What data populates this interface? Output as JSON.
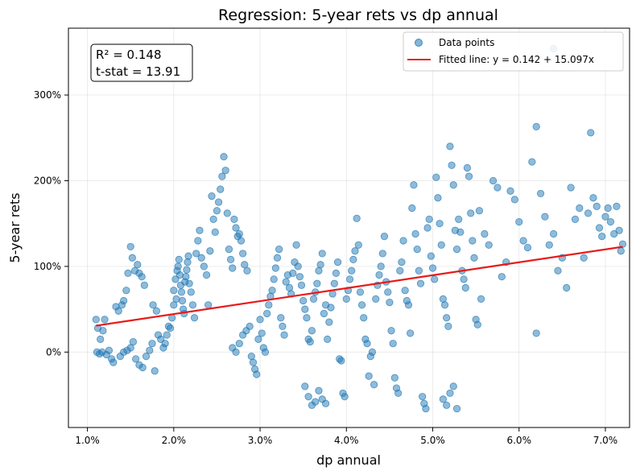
{
  "chart_data": {
    "type": "scatter",
    "title": "Regression: 5-year rets vs dp annual",
    "xlabel": "dp annual",
    "ylabel": "5-year rets",
    "xlim": [
      0.0078,
      0.0728
    ],
    "ylim": [
      -0.88,
      3.78
    ],
    "xticks": [
      {
        "value": 0.01,
        "label": "1.0%"
      },
      {
        "value": 0.02,
        "label": "2.0%"
      },
      {
        "value": 0.03,
        "label": "3.0%"
      },
      {
        "value": 0.04,
        "label": "4.0%"
      },
      {
        "value": 0.05,
        "label": "5.0%"
      },
      {
        "value": 0.06,
        "label": "6.0%"
      },
      {
        "value": 0.07,
        "label": "7.0%"
      }
    ],
    "yticks": [
      {
        "value": 0,
        "label": "0%"
      },
      {
        "value": 1,
        "label": "100%"
      },
      {
        "value": 2,
        "label": "200%"
      },
      {
        "value": 3,
        "label": "300%"
      }
    ],
    "grid": true,
    "legend_position": "top-right",
    "annotation": {
      "r2": "R² = 0.148",
      "tstat": "t-stat = 13.91"
    },
    "series": [
      {
        "name": "Data points",
        "kind": "scatter",
        "color": "#1f77b4",
        "points": [
          [
            0.011,
            0.38
          ],
          [
            0.0112,
            0.28
          ],
          [
            0.0115,
            0.15
          ],
          [
            0.0118,
            0.25
          ],
          [
            0.012,
            0.38
          ],
          [
            0.0111,
            0.0
          ],
          [
            0.0114,
            -0.02
          ],
          [
            0.0117,
            0.0
          ],
          [
            0.0122,
            -0.03
          ],
          [
            0.0125,
            0.02
          ],
          [
            0.0128,
            -0.08
          ],
          [
            0.013,
            -0.12
          ],
          [
            0.0133,
            0.53
          ],
          [
            0.0136,
            0.48
          ],
          [
            0.014,
            0.55
          ],
          [
            0.0142,
            0.6
          ],
          [
            0.0145,
            0.72
          ],
          [
            0.0147,
            0.92
          ],
          [
            0.015,
            1.23
          ],
          [
            0.0152,
            1.1
          ],
          [
            0.0155,
            0.95
          ],
          [
            0.0158,
            1.02
          ],
          [
            0.016,
            0.92
          ],
          [
            0.0163,
            0.88
          ],
          [
            0.0166,
            0.78
          ],
          [
            0.0138,
            -0.05
          ],
          [
            0.0142,
            0.0
          ],
          [
            0.0146,
            0.02
          ],
          [
            0.015,
            0.05
          ],
          [
            0.0153,
            0.12
          ],
          [
            0.0156,
            -0.08
          ],
          [
            0.016,
            -0.15
          ],
          [
            0.0164,
            -0.18
          ],
          [
            0.0168,
            -0.05
          ],
          [
            0.0172,
            0.02
          ],
          [
            0.0175,
            0.1
          ],
          [
            0.0178,
            -0.22
          ],
          [
            0.0176,
            0.55
          ],
          [
            0.018,
            0.48
          ],
          [
            0.0182,
            0.2
          ],
          [
            0.0185,
            0.15
          ],
          [
            0.0188,
            0.05
          ],
          [
            0.019,
            0.1
          ],
          [
            0.0192,
            0.2
          ],
          [
            0.0194,
            0.3
          ],
          [
            0.0196,
            0.28
          ],
          [
            0.0198,
            0.4
          ],
          [
            0.02,
            0.55
          ],
          [
            0.02,
            0.72
          ],
          [
            0.0202,
            0.85
          ],
          [
            0.0203,
            0.62
          ],
          [
            0.0204,
            0.95
          ],
          [
            0.0205,
            1.0
          ],
          [
            0.0206,
            1.08
          ],
          [
            0.0207,
            0.9
          ],
          [
            0.0208,
            0.78
          ],
          [
            0.0209,
            0.7
          ],
          [
            0.021,
            0.6
          ],
          [
            0.0211,
            0.5
          ],
          [
            0.0212,
            0.45
          ],
          [
            0.0213,
            0.82
          ],
          [
            0.0214,
            0.88
          ],
          [
            0.0215,
            0.96
          ],
          [
            0.0216,
            1.05
          ],
          [
            0.0217,
            1.12
          ],
          [
            0.0218,
            0.8
          ],
          [
            0.022,
            0.7
          ],
          [
            0.0222,
            0.55
          ],
          [
            0.0224,
            0.4
          ],
          [
            0.0226,
            1.15
          ],
          [
            0.0228,
            1.3
          ],
          [
            0.023,
            1.42
          ],
          [
            0.0232,
            1.1
          ],
          [
            0.0235,
            1.0
          ],
          [
            0.0238,
            0.9
          ],
          [
            0.024,
            0.55
          ],
          [
            0.0242,
            1.18
          ],
          [
            0.0244,
            1.82
          ],
          [
            0.0246,
            1.55
          ],
          [
            0.0248,
            1.4
          ],
          [
            0.025,
            1.65
          ],
          [
            0.0252,
            1.75
          ],
          [
            0.0254,
            1.9
          ],
          [
            0.0256,
            2.05
          ],
          [
            0.0258,
            2.28
          ],
          [
            0.026,
            2.12
          ],
          [
            0.0262,
            1.62
          ],
          [
            0.0264,
            1.2
          ],
          [
            0.0266,
            1.08
          ],
          [
            0.0268,
            0.98
          ],
          [
            0.027,
            1.55
          ],
          [
            0.0272,
            1.45
          ],
          [
            0.0274,
            1.35
          ],
          [
            0.0276,
            1.38
          ],
          [
            0.0278,
            1.3
          ],
          [
            0.028,
            1.15
          ],
          [
            0.0282,
            1.02
          ],
          [
            0.0285,
            0.95
          ],
          [
            0.0268,
            0.05
          ],
          [
            0.0272,
            0.0
          ],
          [
            0.0276,
            0.1
          ],
          [
            0.028,
            0.2
          ],
          [
            0.0284,
            0.25
          ],
          [
            0.0288,
            0.3
          ],
          [
            0.029,
            -0.05
          ],
          [
            0.0292,
            -0.12
          ],
          [
            0.0294,
            -0.2
          ],
          [
            0.0296,
            -0.26
          ],
          [
            0.0298,
            0.15
          ],
          [
            0.03,
            0.38
          ],
          [
            0.0302,
            0.22
          ],
          [
            0.0304,
            0.05
          ],
          [
            0.0306,
            0.0
          ],
          [
            0.0308,
            0.45
          ],
          [
            0.031,
            0.55
          ],
          [
            0.0312,
            0.65
          ],
          [
            0.0314,
            0.72
          ],
          [
            0.0316,
            0.85
          ],
          [
            0.0318,
            0.98
          ],
          [
            0.032,
            1.1
          ],
          [
            0.0322,
            1.2
          ],
          [
            0.0324,
            0.4
          ],
          [
            0.0326,
            0.3
          ],
          [
            0.0328,
            0.2
          ],
          [
            0.033,
            0.82
          ],
          [
            0.0332,
            0.9
          ],
          [
            0.0334,
            0.75
          ],
          [
            0.0336,
            0.68
          ],
          [
            0.0338,
            0.92
          ],
          [
            0.034,
            1.05
          ],
          [
            0.0342,
            1.25
          ],
          [
            0.0344,
            1.0
          ],
          [
            0.0346,
            0.88
          ],
          [
            0.0348,
            0.78
          ],
          [
            0.035,
            0.6
          ],
          [
            0.0352,
            0.5
          ],
          [
            0.0354,
            0.4
          ],
          [
            0.0356,
            0.15
          ],
          [
            0.0358,
            0.12
          ],
          [
            0.036,
            0.25
          ],
          [
            0.0362,
            0.62
          ],
          [
            0.0364,
            0.7
          ],
          [
            0.0366,
            0.8
          ],
          [
            0.0368,
            0.95
          ],
          [
            0.037,
            1.02
          ],
          [
            0.0372,
            1.15
          ],
          [
            0.0374,
            0.45
          ],
          [
            0.0376,
            0.55
          ],
          [
            0.0352,
            -0.4
          ],
          [
            0.0356,
            -0.52
          ],
          [
            0.036,
            -0.62
          ],
          [
            0.0364,
            -0.58
          ],
          [
            0.0368,
            -0.45
          ],
          [
            0.0372,
            -0.55
          ],
          [
            0.0376,
            -0.6
          ],
          [
            0.0378,
            0.15
          ],
          [
            0.038,
            0.35
          ],
          [
            0.0382,
            0.52
          ],
          [
            0.0384,
            0.68
          ],
          [
            0.0386,
            0.8
          ],
          [
            0.0388,
            0.92
          ],
          [
            0.039,
            1.05
          ],
          [
            0.0392,
            -0.08
          ],
          [
            0.0394,
            -0.1
          ],
          [
            0.0396,
            -0.48
          ],
          [
            0.0398,
            -0.52
          ],
          [
            0.04,
            0.62
          ],
          [
            0.0402,
            0.72
          ],
          [
            0.0404,
            0.85
          ],
          [
            0.0406,
            0.95
          ],
          [
            0.0408,
            1.08
          ],
          [
            0.041,
            1.18
          ],
          [
            0.0412,
            1.56
          ],
          [
            0.0414,
            1.25
          ],
          [
            0.0416,
            0.7
          ],
          [
            0.0418,
            0.55
          ],
          [
            0.042,
            0.4
          ],
          [
            0.0422,
            0.15
          ],
          [
            0.0424,
            0.1
          ],
          [
            0.0426,
            -0.28
          ],
          [
            0.0428,
            -0.05
          ],
          [
            0.043,
            0.0
          ],
          [
            0.0432,
            -0.38
          ],
          [
            0.0434,
            0.62
          ],
          [
            0.0436,
            0.78
          ],
          [
            0.0438,
            0.9
          ],
          [
            0.044,
            1.0
          ],
          [
            0.0442,
            1.15
          ],
          [
            0.0444,
            1.35
          ],
          [
            0.0446,
            0.82
          ],
          [
            0.0448,
            0.7
          ],
          [
            0.045,
            0.58
          ],
          [
            0.0452,
            0.25
          ],
          [
            0.0454,
            0.1
          ],
          [
            0.0456,
            -0.3
          ],
          [
            0.0458,
            -0.42
          ],
          [
            0.046,
            -0.48
          ],
          [
            0.0462,
            0.95
          ],
          [
            0.0464,
            1.05
          ],
          [
            0.0466,
            1.3
          ],
          [
            0.0468,
            0.72
          ],
          [
            0.047,
            0.6
          ],
          [
            0.0472,
            0.55
          ],
          [
            0.0474,
            0.22
          ],
          [
            0.0476,
            1.68
          ],
          [
            0.0478,
            1.95
          ],
          [
            0.048,
            1.38
          ],
          [
            0.0482,
            1.2
          ],
          [
            0.0484,
            0.95
          ],
          [
            0.0486,
            0.8
          ],
          [
            0.0488,
            -0.52
          ],
          [
            0.049,
            -0.6
          ],
          [
            0.0492,
            -0.66
          ],
          [
            0.0494,
            1.45
          ],
          [
            0.0496,
            1.55
          ],
          [
            0.0498,
            1.12
          ],
          [
            0.05,
            0.98
          ],
          [
            0.0502,
            0.85
          ],
          [
            0.0504,
            2.04
          ],
          [
            0.0506,
            1.8
          ],
          [
            0.0508,
            1.5
          ],
          [
            0.051,
            1.25
          ],
          [
            0.0512,
            0.62
          ],
          [
            0.0514,
            0.55
          ],
          [
            0.0516,
            0.4
          ],
          [
            0.0518,
            0.3
          ],
          [
            0.052,
            2.4
          ],
          [
            0.0522,
            2.18
          ],
          [
            0.0524,
            1.95
          ],
          [
            0.0526,
            1.42
          ],
          [
            0.0528,
            1.2
          ],
          [
            0.0512,
            -0.55
          ],
          [
            0.0516,
            -0.62
          ],
          [
            0.052,
            -0.48
          ],
          [
            0.0524,
            -0.4
          ],
          [
            0.0528,
            -0.66
          ],
          [
            0.053,
            1.55
          ],
          [
            0.0532,
            1.4
          ],
          [
            0.0534,
            0.95
          ],
          [
            0.0536,
            0.85
          ],
          [
            0.0538,
            0.75
          ],
          [
            0.054,
            2.15
          ],
          [
            0.0542,
            2.05
          ],
          [
            0.0544,
            1.62
          ],
          [
            0.0546,
            1.3
          ],
          [
            0.0548,
            1.1
          ],
          [
            0.055,
            0.38
          ],
          [
            0.0552,
            0.32
          ],
          [
            0.0554,
            1.65
          ],
          [
            0.0556,
            0.62
          ],
          [
            0.056,
            1.38
          ],
          [
            0.0565,
            1.25
          ],
          [
            0.057,
            2.0
          ],
          [
            0.0575,
            1.92
          ],
          [
            0.058,
            0.88
          ],
          [
            0.0585,
            1.05
          ],
          [
            0.059,
            1.88
          ],
          [
            0.0595,
            1.78
          ],
          [
            0.06,
            1.52
          ],
          [
            0.0605,
            1.3
          ],
          [
            0.061,
            1.22
          ],
          [
            0.0615,
            2.22
          ],
          [
            0.062,
            2.63
          ],
          [
            0.0625,
            1.85
          ],
          [
            0.062,
            0.22
          ],
          [
            0.063,
            1.58
          ],
          [
            0.0635,
            1.25
          ],
          [
            0.064,
            1.38
          ],
          [
            0.0645,
            0.95
          ],
          [
            0.065,
            1.1
          ],
          [
            0.0655,
            0.75
          ],
          [
            0.066,
            1.92
          ],
          [
            0.0665,
            1.55
          ],
          [
            0.067,
            1.68
          ],
          [
            0.0675,
            1.1
          ],
          [
            0.068,
            1.62
          ],
          [
            0.0683,
            2.56
          ],
          [
            0.0686,
            1.8
          ],
          [
            0.069,
            1.7
          ],
          [
            0.0693,
            1.45
          ],
          [
            0.0696,
            1.35
          ],
          [
            0.07,
            1.58
          ],
          [
            0.0703,
            1.68
          ],
          [
            0.0706,
            1.52
          ],
          [
            0.071,
            1.38
          ],
          [
            0.0713,
            1.7
          ],
          [
            0.0716,
            1.42
          ],
          [
            0.072,
            1.26
          ],
          [
            0.0718,
            1.18
          ],
          [
            0.064,
            3.54
          ]
        ]
      },
      {
        "name": "Fitted line: y = 0.142 + 15.097x",
        "kind": "line",
        "color": "#e81a1a",
        "intercept": 0.142,
        "slope": 15.097,
        "x_range": [
          0.011,
          0.072
        ]
      }
    ]
  }
}
